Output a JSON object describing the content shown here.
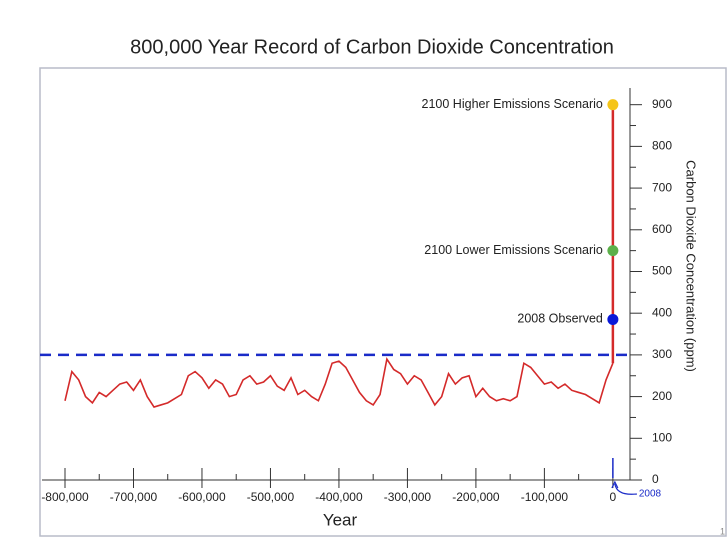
{
  "chart_data": {
    "type": "line",
    "title": "800,000 Year Record of Carbon Dioxide Concentration",
    "xlabel": "Year",
    "ylabel": "Carbon Dioxide Concentration (ppm)",
    "x": [
      -800000,
      -790000,
      -780000,
      -770000,
      -760000,
      -750000,
      -740000,
      -730000,
      -720000,
      -710000,
      -700000,
      -690000,
      -680000,
      -670000,
      -660000,
      -650000,
      -640000,
      -630000,
      -620000,
      -610000,
      -600000,
      -590000,
      -580000,
      -570000,
      -560000,
      -550000,
      -540000,
      -530000,
      -520000,
      -510000,
      -500000,
      -490000,
      -480000,
      -470000,
      -460000,
      -450000,
      -440000,
      -430000,
      -420000,
      -410000,
      -400000,
      -390000,
      -380000,
      -370000,
      -360000,
      -350000,
      -340000,
      -330000,
      -320000,
      -310000,
      -300000,
      -290000,
      -280000,
      -270000,
      -260000,
      -250000,
      -240000,
      -230000,
      -220000,
      -210000,
      -200000,
      -190000,
      -180000,
      -170000,
      -160000,
      -150000,
      -140000,
      -130000,
      -120000,
      -110000,
      -100000,
      -90000,
      -80000,
      -70000,
      -60000,
      -50000,
      -40000,
      -30000,
      -20000,
      -10000,
      0
    ],
    "series": [
      {
        "color": "#d42a2a",
        "values": [
          190,
          260,
          240,
          200,
          185,
          210,
          200,
          215,
          230,
          235,
          215,
          240,
          200,
          175,
          180,
          185,
          195,
          205,
          250,
          260,
          245,
          220,
          240,
          230,
          200,
          205,
          240,
          250,
          230,
          235,
          250,
          225,
          215,
          245,
          205,
          215,
          200,
          190,
          230,
          280,
          285,
          270,
          240,
          210,
          190,
          180,
          205,
          290,
          265,
          255,
          230,
          250,
          240,
          210,
          180,
          200,
          255,
          230,
          245,
          250,
          200,
          220,
          200,
          190,
          195,
          190,
          200,
          280,
          270,
          250,
          230,
          235,
          220,
          230,
          215,
          210,
          205,
          195,
          185,
          240,
          280
        ]
      },
      {
        "color": "#d42a2a",
        "x": [
          0,
          0
        ],
        "values": [
          280,
          900
        ]
      }
    ],
    "scenarios": [
      {
        "label": "2100 Higher Emissions Scenario",
        "value": 900,
        "color": "#f5c518"
      },
      {
        "label": "2100 Lower Emissions Scenario",
        "value": 550,
        "color": "#5cb04a"
      },
      {
        "label": "2008 Observed",
        "value": 385,
        "color": "#0a18d8"
      }
    ],
    "reference_line": {
      "value": 300,
      "color": "#1a2bc8"
    },
    "annotation": {
      "text": "2008",
      "x": 0,
      "color": "#1a2bc8"
    },
    "xlim": [
      -800000,
      25000
    ],
    "ylim": [
      0,
      940
    ],
    "xticks": [
      {
        "value": -800000,
        "label": "-800,000"
      },
      {
        "value": -700000,
        "label": "-700,000"
      },
      {
        "value": -600000,
        "label": "-600,000"
      },
      {
        "value": -500000,
        "label": "-500,000"
      },
      {
        "value": -400000,
        "label": "-400,000"
      },
      {
        "value": -300000,
        "label": "-300,000"
      },
      {
        "value": -200000,
        "label": "-200,000"
      },
      {
        "value": -100000,
        "label": "-100,000"
      },
      0
    ],
    "yticks": [
      0,
      100,
      200,
      300,
      400,
      500,
      600,
      700,
      800,
      900
    ]
  },
  "slide_number": "1"
}
